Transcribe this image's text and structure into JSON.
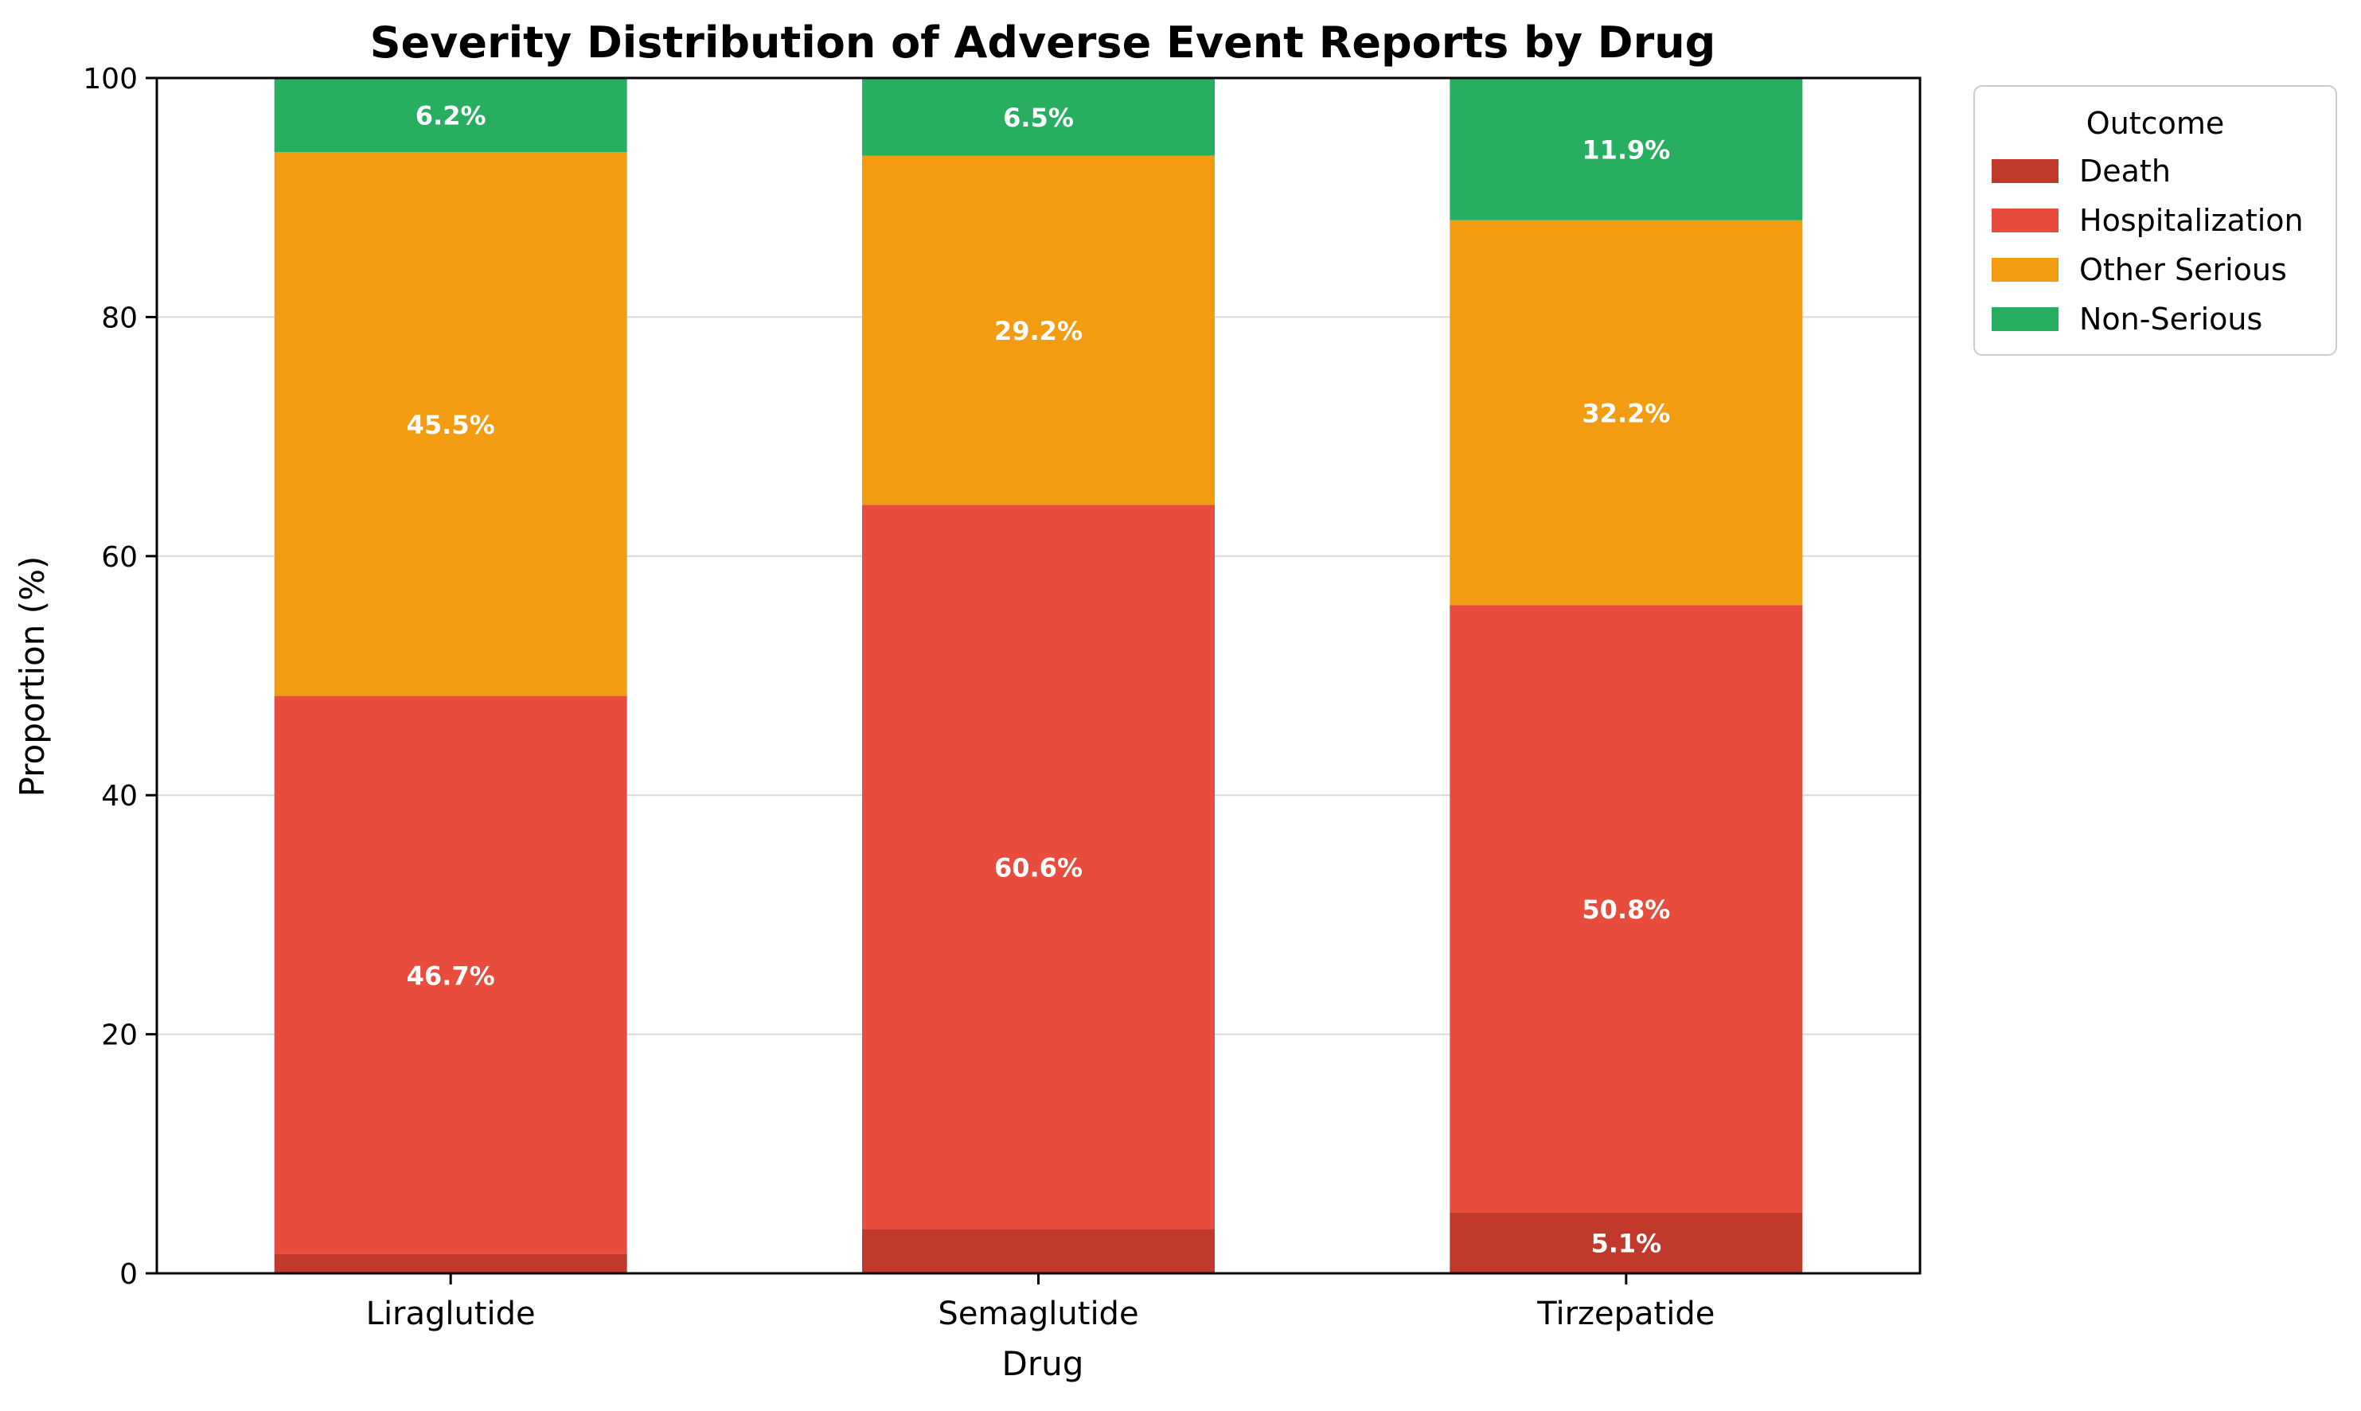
{
  "chart_data": {
    "type": "bar",
    "stacked": true,
    "title": "Severity Distribution of Adverse Event Reports by Drug",
    "xlabel": "Drug",
    "ylabel": "Proportion (%)",
    "ylim": [
      0,
      100
    ],
    "yticks": [
      0,
      20,
      40,
      60,
      80,
      100
    ],
    "grid": "horizontal",
    "categories": [
      "Liraglutide",
      "Semaglutide",
      "Tirzepatide"
    ],
    "series": [
      {
        "name": "Death",
        "color": "#c0392b",
        "values": [
          1.6,
          3.7,
          5.1
        ],
        "labels": [
          "",
          "",
          "5.1%"
        ]
      },
      {
        "name": "Hospitalization",
        "color": "#e74c3c",
        "values": [
          46.7,
          60.6,
          50.8
        ],
        "labels": [
          "46.7%",
          "60.6%",
          "50.8%"
        ]
      },
      {
        "name": "Other Serious",
        "color": "#f39c12",
        "values": [
          45.5,
          29.2,
          32.2
        ],
        "labels": [
          "45.5%",
          "29.2%",
          "32.2%"
        ]
      },
      {
        "name": "Non-Serious",
        "color": "#27ae60",
        "values": [
          6.2,
          6.5,
          11.9
        ],
        "labels": [
          "6.2%",
          "6.5%",
          "11.9%"
        ]
      }
    ],
    "legend": {
      "title": "Outcome",
      "position": "outside-right"
    }
  }
}
